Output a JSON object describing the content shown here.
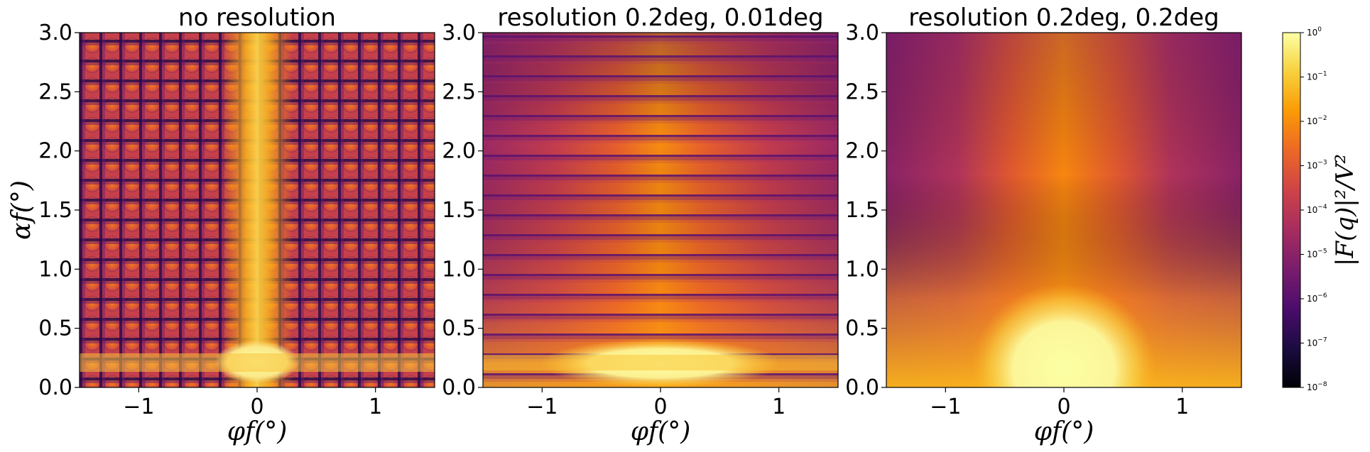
{
  "chart_data": [
    {
      "type": "heatmap",
      "title": "no resolution",
      "xlabel": "φf(°)",
      "ylabel": "αf(°)",
      "xlim": [
        -1.5,
        1.5
      ],
      "ylim": [
        0.0,
        3.0
      ],
      "x_ticks": [
        "−1",
        "0",
        "1"
      ],
      "y_ticks": [
        "0.0",
        "0.5",
        "1.0",
        "1.5",
        "2.0",
        "2.5",
        "3.0"
      ],
      "description_of_values": "grid of maxima; vertical bright band at φf=0; bright maximum near αf≈0.2",
      "colormap": "inferno",
      "log_scale": true
    },
    {
      "type": "heatmap",
      "title": "resolution 0.2deg, 0.01deg",
      "xlabel": "φf(°)",
      "ylabel": "",
      "xlim": [
        -1.5,
        1.5
      ],
      "ylim": [
        0.0,
        3.0
      ],
      "x_ticks": [
        "−1",
        "0",
        "1"
      ],
      "y_ticks": [
        "0.0",
        "0.5",
        "1.0",
        "1.5",
        "2.0",
        "2.5",
        "3.0"
      ],
      "colormap": "inferno",
      "log_scale": true
    },
    {
      "type": "heatmap",
      "title": "resolution 0.2deg, 0.2deg",
      "xlabel": "φf(°)",
      "ylabel": "",
      "xlim": [
        -1.5,
        1.5
      ],
      "ylim": [
        0.0,
        3.0
      ],
      "x_ticks": [
        "−1",
        "0",
        "1"
      ],
      "y_ticks": [
        "0.0",
        "0.5",
        "1.0",
        "1.5",
        "2.0",
        "2.5",
        "3.0"
      ],
      "colormap": "inferno",
      "log_scale": true
    }
  ],
  "colorbar": {
    "label": "|F(q)|²/V²",
    "scale": "log",
    "range": [
      1e-08,
      1
    ],
    "ticks": [
      {
        "base": "10",
        "exp": "0",
        "value": 1
      },
      {
        "base": "10",
        "exp": "−1",
        "value": 0.1
      },
      {
        "base": "10",
        "exp": "−2",
        "value": 0.01
      },
      {
        "base": "10",
        "exp": "−3",
        "value": 0.001
      },
      {
        "base": "10",
        "exp": "−4",
        "value": 0.0001
      },
      {
        "base": "10",
        "exp": "−5",
        "value": 1e-05
      },
      {
        "base": "10",
        "exp": "−6",
        "value": 1e-06
      },
      {
        "base": "10",
        "exp": "−7",
        "value": 1e-07
      },
      {
        "base": "10",
        "exp": "−8",
        "value": 1e-08
      }
    ],
    "stops": [
      "#000004",
      "#1b0c41",
      "#4a0c6b",
      "#781c6d",
      "#a52c60",
      "#cf4446",
      "#ed6925",
      "#fb9b06",
      "#f7d13d",
      "#fcffa4"
    ]
  }
}
